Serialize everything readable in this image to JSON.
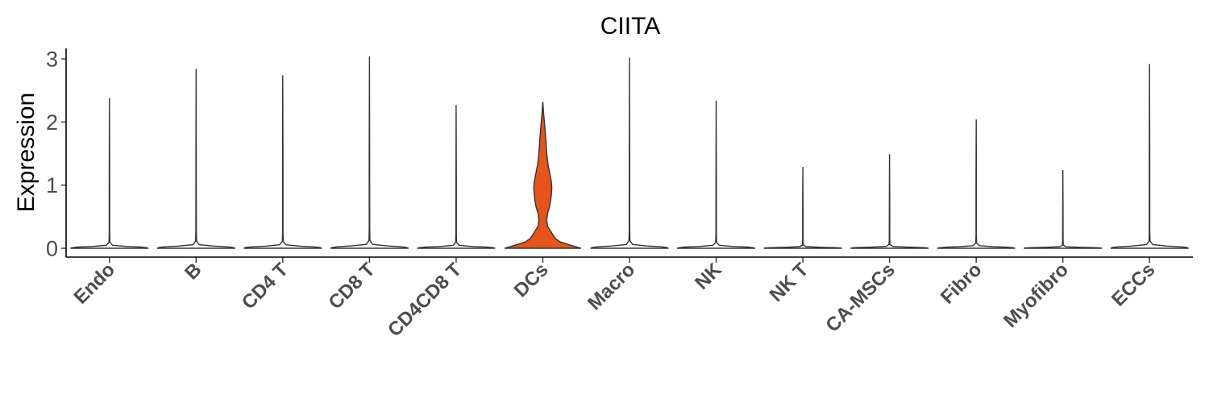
{
  "chart_data": {
    "type": "violin",
    "title": "CIITA",
    "xlabel": "",
    "ylabel": "Expression",
    "ylim": [
      -0.15,
      3.2
    ],
    "yticks": [
      0,
      1,
      2,
      3
    ],
    "ytick_labels": [
      "0",
      "1",
      "2",
      "3"
    ],
    "grid": false,
    "legend": "none",
    "categories": [
      "Endo",
      "B",
      "CD4 T",
      "CD8 T",
      "CD4CD8 T",
      "DCs",
      "Macro",
      "NK",
      "NK T",
      "CA-MSCs",
      "Fibro",
      "Myofibro",
      "ECCs"
    ],
    "max_values": [
      2.38,
      2.84,
      2.74,
      3.04,
      2.27,
      2.32,
      3.02,
      2.34,
      1.29,
      1.49,
      2.04,
      1.24,
      2.92
    ],
    "colors": [
      "#FFFFFF",
      "#FFFFFF",
      "#FFFFFF",
      "#FFFFFF",
      "#FFFFFF",
      "#E6541A",
      "#FFFFFF",
      "#FFFFFF",
      "#FFFFFF",
      "#FFFFFF",
      "#FFFFFF",
      "#FFFFFF",
      "#FFFFFF"
    ],
    "outline_color": "#333333",
    "dcs_density_profile": {
      "y": [
        0,
        0.05,
        0.1,
        0.15,
        0.2,
        0.25,
        0.3,
        0.35,
        0.45,
        0.55,
        0.65,
        0.75,
        0.85,
        0.95,
        1.05,
        1.15,
        1.3,
        1.5,
        1.7,
        1.85,
        2.0,
        2.15,
        2.32
      ],
      "half_width": [
        0.98,
        0.7,
        0.45,
        0.33,
        0.27,
        0.22,
        0.17,
        0.12,
        0.1,
        0.12,
        0.17,
        0.2,
        0.22,
        0.23,
        0.22,
        0.19,
        0.14,
        0.1,
        0.08,
        0.06,
        0.04,
        0.02,
        0.0
      ]
    }
  }
}
